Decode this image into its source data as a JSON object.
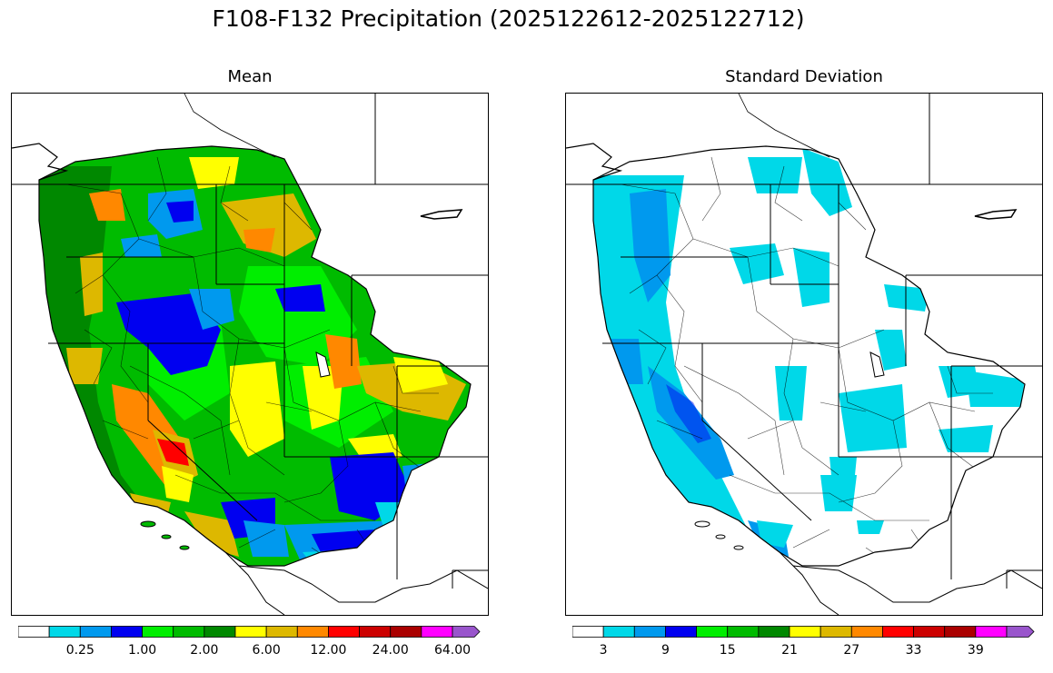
{
  "title": "F108-F132 Precipitation (2025122612-2025122712)",
  "panels": [
    {
      "id": "mean",
      "title": "Mean",
      "colorbar": {
        "colors": [
          "#ffffff",
          "#00d8e8",
          "#0099ee",
          "#0000f0",
          "#00ee00",
          "#00bb00",
          "#008800",
          "#ffff00",
          "#ddb800",
          "#ff8800",
          "#ff0000",
          "#cc0000",
          "#aa0000",
          "#ff00ff",
          "#9955cc"
        ],
        "tick_labels": [
          "0.25",
          "1.00",
          "2.00",
          "6.00",
          "12.00",
          "24.00",
          "64.00"
        ],
        "label_boundaries": [
          2,
          4,
          6,
          8,
          10,
          12,
          14
        ],
        "extend": "max"
      }
    },
    {
      "id": "stddev",
      "title": "Standard Deviation",
      "colorbar": {
        "colors": [
          "#ffffff",
          "#00d8e8",
          "#0099ee",
          "#0000f0",
          "#00ee00",
          "#00bb00",
          "#008800",
          "#ffff00",
          "#ddb800",
          "#ff8800",
          "#ff0000",
          "#cc0000",
          "#aa0000",
          "#ff00ff",
          "#9955cc"
        ],
        "tick_labels": [
          "3",
          "9",
          "15",
          "21",
          "27",
          "33",
          "39"
        ],
        "label_boundaries": [
          1,
          3,
          5,
          7,
          9,
          11,
          13
        ],
        "extend": "max"
      }
    }
  ]
}
